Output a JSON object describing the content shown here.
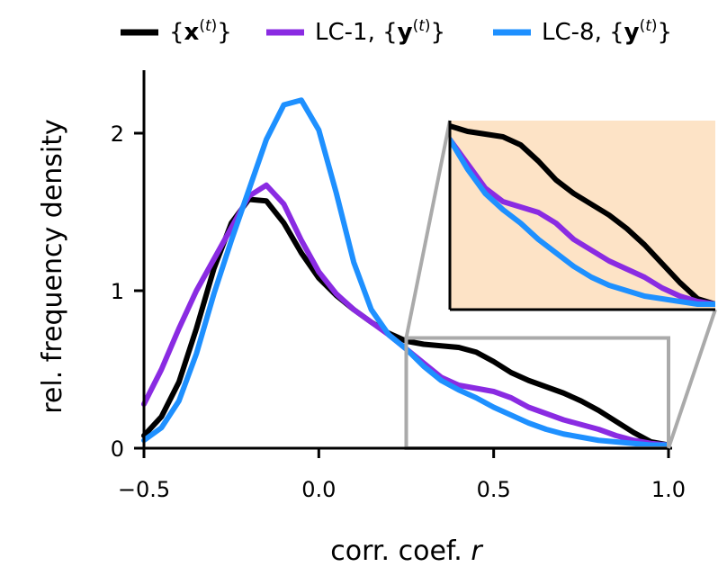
{
  "chart_data": {
    "type": "line",
    "xlabel": "corr. coef. r",
    "ylabel": "rel. frequency density",
    "xlim": [
      -0.5,
      1.0
    ],
    "ylim": [
      0,
      2.4
    ],
    "x_ticks": [
      -0.5,
      0.0,
      0.5,
      1.0
    ],
    "x_tick_labels": [
      "−0.5",
      "0.0",
      "0.5",
      "1.0"
    ],
    "y_ticks": [
      0,
      1,
      2
    ],
    "y_tick_labels": [
      "0",
      "1",
      "2"
    ],
    "legend_position": "top",
    "series": [
      {
        "name": "{x(t)}",
        "color": "#000000",
        "x": [
          -0.5,
          -0.45,
          -0.4,
          -0.35,
          -0.3,
          -0.25,
          -0.2,
          -0.15,
          -0.1,
          -0.05,
          0.0,
          0.05,
          0.1,
          0.15,
          0.2,
          0.25,
          0.3,
          0.35,
          0.4,
          0.45,
          0.5,
          0.55,
          0.6,
          0.65,
          0.7,
          0.75,
          0.8,
          0.85,
          0.9,
          0.95,
          1.0
        ],
        "y": [
          0.08,
          0.2,
          0.42,
          0.76,
          1.14,
          1.43,
          1.58,
          1.57,
          1.43,
          1.24,
          1.08,
          0.97,
          0.88,
          0.8,
          0.73,
          0.68,
          0.66,
          0.65,
          0.64,
          0.61,
          0.55,
          0.48,
          0.43,
          0.39,
          0.35,
          0.3,
          0.24,
          0.17,
          0.1,
          0.04,
          0.02
        ]
      },
      {
        "name": "LC-1, {y(t)}",
        "color": "#8a2be2",
        "x": [
          -0.5,
          -0.45,
          -0.4,
          -0.35,
          -0.3,
          -0.25,
          -0.2,
          -0.15,
          -0.1,
          -0.05,
          0.0,
          0.05,
          0.1,
          0.15,
          0.2,
          0.25,
          0.3,
          0.35,
          0.4,
          0.45,
          0.5,
          0.55,
          0.6,
          0.65,
          0.7,
          0.75,
          0.8,
          0.85,
          0.9,
          0.95,
          1.0
        ],
        "y": [
          0.28,
          0.5,
          0.76,
          1.0,
          1.2,
          1.4,
          1.6,
          1.67,
          1.55,
          1.32,
          1.12,
          0.98,
          0.88,
          0.8,
          0.72,
          0.63,
          0.54,
          0.45,
          0.4,
          0.38,
          0.36,
          0.32,
          0.26,
          0.22,
          0.18,
          0.15,
          0.12,
          0.08,
          0.05,
          0.03,
          0.02
        ]
      },
      {
        "name": "LC-8, {y(t)}",
        "color": "#1e90ff",
        "x": [
          -0.5,
          -0.45,
          -0.4,
          -0.35,
          -0.3,
          -0.25,
          -0.2,
          -0.15,
          -0.1,
          -0.05,
          0.0,
          0.05,
          0.1,
          0.15,
          0.2,
          0.25,
          0.3,
          0.35,
          0.4,
          0.45,
          0.5,
          0.55,
          0.6,
          0.65,
          0.7,
          0.75,
          0.8,
          0.85,
          0.9,
          0.95,
          1.0
        ],
        "y": [
          0.05,
          0.13,
          0.3,
          0.6,
          0.98,
          1.32,
          1.64,
          1.96,
          2.18,
          2.21,
          2.02,
          1.62,
          1.18,
          0.88,
          0.72,
          0.63,
          0.52,
          0.43,
          0.37,
          0.32,
          0.26,
          0.21,
          0.16,
          0.12,
          0.09,
          0.07,
          0.05,
          0.04,
          0.03,
          0.02,
          0.02
        ]
      }
    ],
    "inset": {
      "xlim": [
        0.25,
        1.0
      ],
      "ylim": [
        0,
        0.7
      ],
      "background": "#fde3c6",
      "zoom_box_color": "#aaaaaa"
    }
  }
}
